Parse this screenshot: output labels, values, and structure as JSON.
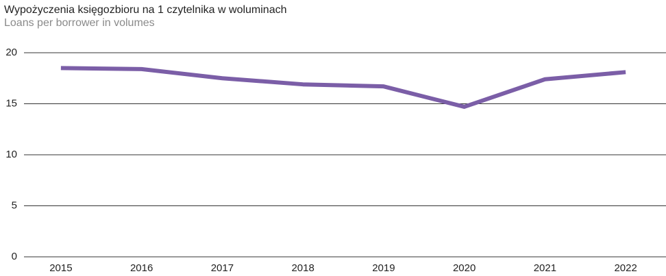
{
  "chart_data": {
    "type": "line",
    "title": "Wypożyczenia księgozbioru na 1 czytelnika w woluminach",
    "subtitle": "Loans per borrower in volumes",
    "categories": [
      "2015",
      "2016",
      "2017",
      "2018",
      "2019",
      "2020",
      "2021",
      "2022"
    ],
    "values": [
      18.5,
      18.4,
      17.5,
      16.9,
      16.7,
      14.7,
      17.4,
      18.1
    ],
    "color": "#7b5ea7",
    "ylim": [
      0,
      20
    ],
    "yticks": [
      0,
      5,
      10,
      15,
      20
    ],
    "grid": true
  }
}
